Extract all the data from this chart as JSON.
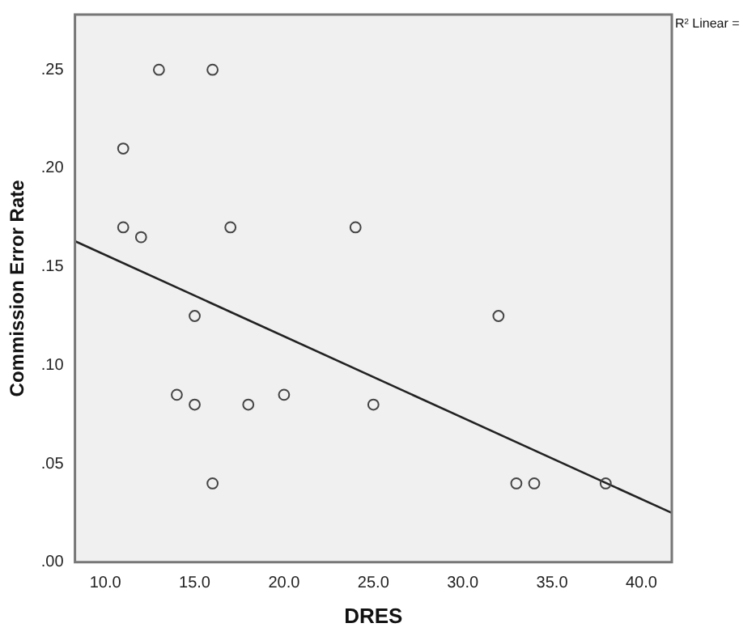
{
  "chart_data": {
    "type": "scatter",
    "xlabel": "DRES",
    "ylabel": "Commission Error Rate",
    "annotations": [
      "R² Linear ="
    ],
    "xlim": [
      8.3,
      41.7
    ],
    "ylim": [
      0,
      0.278
    ],
    "xticks": [
      {
        "value": 10,
        "label": "10.0"
      },
      {
        "value": 15,
        "label": "15.0"
      },
      {
        "value": 20,
        "label": "20.0"
      },
      {
        "value": 25,
        "label": "25.0"
      },
      {
        "value": 30,
        "label": "30.0"
      },
      {
        "value": 35,
        "label": "35.0"
      },
      {
        "value": 40,
        "label": "40.0"
      }
    ],
    "yticks": [
      {
        "value": 0,
        "label": ".00"
      },
      {
        "value": 0.05,
        "label": ".05"
      },
      {
        "value": 0.1,
        "label": ".10"
      },
      {
        "value": 0.15,
        "label": ".15"
      },
      {
        "value": 0.2,
        "label": ".20"
      },
      {
        "value": 0.25,
        "label": ".25"
      }
    ],
    "grid": false,
    "legend": false,
    "marker": "circle",
    "series": [
      {
        "type": "scatter",
        "color": "#444444",
        "x": [
          13,
          16,
          11,
          11,
          12,
          17,
          24,
          15,
          32,
          14,
          15,
          18,
          20,
          25,
          16,
          33,
          34,
          38
        ],
        "values": [
          0.25,
          0.25,
          0.21,
          0.17,
          0.165,
          0.17,
          0.17,
          0.125,
          0.125,
          0.085,
          0.08,
          0.08,
          0.085,
          0.08,
          0.04,
          0.04,
          0.04,
          0.04
        ]
      },
      {
        "type": "line",
        "color": "#222222",
        "marker": "none",
        "line_style": "solid",
        "x": [
          8.3,
          41.7
        ],
        "values": [
          0.163,
          0.025
        ]
      }
    ]
  }
}
